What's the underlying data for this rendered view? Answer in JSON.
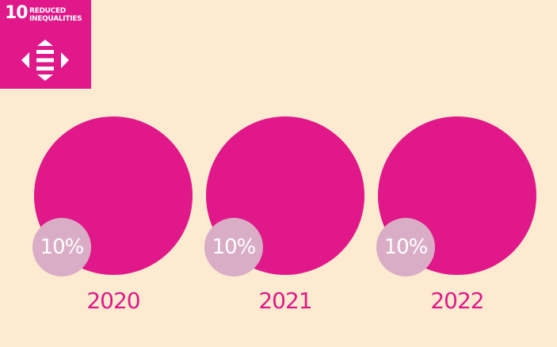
{
  "badge": {
    "number": "10",
    "title": "REDUCED\nINEQUALITIES",
    "icon": "equality-arrows-icon"
  },
  "colors": {
    "background": "#fcebd0",
    "magenta": "#e0188a",
    "percent_circle": "#d9adc6",
    "percent_text": "#ffffff"
  },
  "years": [
    {
      "year": "2020",
      "percent": "10%"
    },
    {
      "year": "2021",
      "percent": "10%"
    },
    {
      "year": "2022",
      "percent": "10%"
    }
  ]
}
